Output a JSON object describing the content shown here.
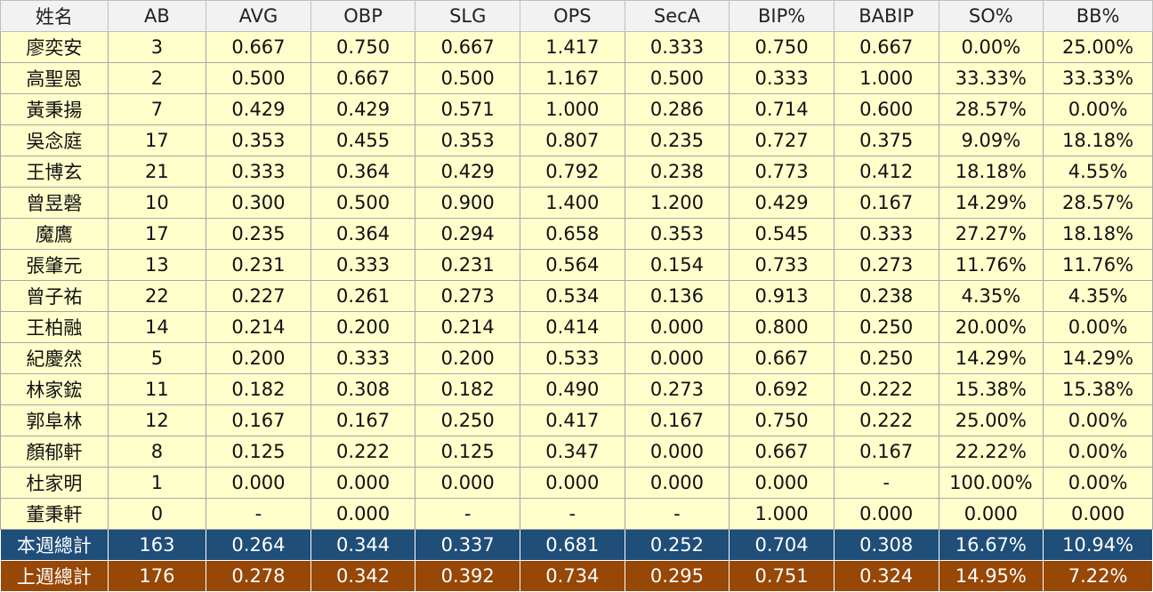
{
  "headers": [
    "姓名",
    "AB",
    "AVG",
    "OBP",
    "SLG",
    "OPS",
    "SecA",
    "BIP%",
    "BABIP",
    "SO%",
    "BB%"
  ],
  "rows": [
    [
      "廖奕安",
      "3",
      "0.667",
      "0.750",
      "0.667",
      "1.417",
      "0.333",
      "0.750",
      "0.667",
      "0.00%",
      "25.00%"
    ],
    [
      "高聖恩",
      "2",
      "0.500",
      "0.667",
      "0.500",
      "1.167",
      "0.500",
      "0.333",
      "1.000",
      "33.33%",
      "33.33%"
    ],
    [
      "黃秉揚",
      "7",
      "0.429",
      "0.429",
      "0.571",
      "1.000",
      "0.286",
      "0.714",
      "0.600",
      "28.57%",
      "0.00%"
    ],
    [
      "吳念庭",
      "17",
      "0.353",
      "0.455",
      "0.353",
      "0.807",
      "0.235",
      "0.727",
      "0.375",
      "9.09%",
      "18.18%"
    ],
    [
      "王博玄",
      "21",
      "0.333",
      "0.364",
      "0.429",
      "0.792",
      "0.238",
      "0.773",
      "0.412",
      "18.18%",
      "4.55%"
    ],
    [
      "曾昱磬",
      "10",
      "0.300",
      "0.500",
      "0.900",
      "1.400",
      "1.200",
      "0.429",
      "0.167",
      "14.29%",
      "28.57%"
    ],
    [
      "魔鷹",
      "17",
      "0.235",
      "0.364",
      "0.294",
      "0.658",
      "0.353",
      "0.545",
      "0.333",
      "27.27%",
      "18.18%"
    ],
    [
      "張肇元",
      "13",
      "0.231",
      "0.333",
      "0.231",
      "0.564",
      "0.154",
      "0.733",
      "0.273",
      "11.76%",
      "11.76%"
    ],
    [
      "曾子祐",
      "22",
      "0.227",
      "0.261",
      "0.273",
      "0.534",
      "0.136",
      "0.913",
      "0.238",
      "4.35%",
      "4.35%"
    ],
    [
      "王柏融",
      "14",
      "0.214",
      "0.200",
      "0.214",
      "0.414",
      "0.000",
      "0.800",
      "0.250",
      "20.00%",
      "0.00%"
    ],
    [
      "紀慶然",
      "5",
      "0.200",
      "0.333",
      "0.200",
      "0.533",
      "0.000",
      "0.667",
      "0.250",
      "14.29%",
      "14.29%"
    ],
    [
      "林家鋐",
      "11",
      "0.182",
      "0.308",
      "0.182",
      "0.490",
      "0.273",
      "0.692",
      "0.222",
      "15.38%",
      "15.38%"
    ],
    [
      "郭阜林",
      "12",
      "0.167",
      "0.167",
      "0.250",
      "0.417",
      "0.167",
      "0.750",
      "0.222",
      "25.00%",
      "0.00%"
    ],
    [
      "顏郁軒",
      "8",
      "0.125",
      "0.222",
      "0.125",
      "0.347",
      "0.000",
      "0.667",
      "0.167",
      "22.22%",
      "0.00%"
    ],
    [
      "杜家明",
      "1",
      "0.000",
      "0.000",
      "0.000",
      "0.000",
      "0.000",
      "0.000",
      "-",
      "100.00%",
      "0.00%"
    ],
    [
      "董秉軒",
      "0",
      "-",
      "0.000",
      "-",
      "-",
      "-",
      "1.000",
      "0.000",
      "0.000",
      "0.000"
    ]
  ],
  "totals": [
    {
      "cells": [
        "本週總計",
        "163",
        "0.264",
        "0.344",
        "0.337",
        "0.681",
        "0.252",
        "0.704",
        "0.308",
        "16.67%",
        "10.94%"
      ]
    },
    {
      "cells": [
        "上週總計",
        "176",
        "0.278",
        "0.342",
        "0.392",
        "0.734",
        "0.295",
        "0.751",
        "0.324",
        "14.95%",
        "7.22%"
      ]
    }
  ],
  "colors": {
    "header_bg": "#f2f2f2",
    "row_bg": "#ffffcc",
    "this_week_total_bg": "#1f4e79",
    "last_week_total_bg": "#974706",
    "total_text": "#ffffff"
  }
}
